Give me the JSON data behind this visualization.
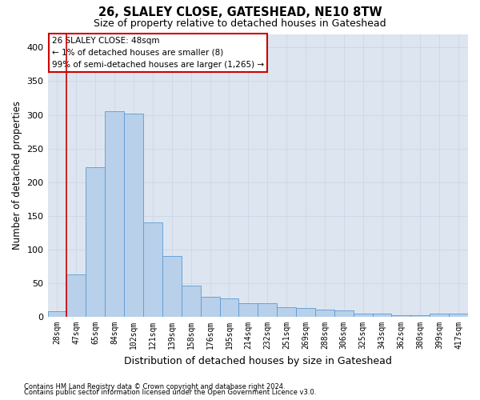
{
  "title1": "26, SLALEY CLOSE, GATESHEAD, NE10 8TW",
  "title2": "Size of property relative to detached houses in Gateshead",
  "xlabel": "Distribution of detached houses by size in Gateshead",
  "ylabel": "Number of detached properties",
  "bar_values": [
    8,
    63,
    222,
    305,
    302,
    140,
    90,
    46,
    30,
    27,
    20,
    20,
    14,
    13,
    11,
    10,
    5,
    5,
    3,
    3,
    5,
    5
  ],
  "bar_labels": [
    "28sqm",
    "47sqm",
    "65sqm",
    "84sqm",
    "102sqm",
    "121sqm",
    "139sqm",
    "158sqm",
    "176sqm",
    "195sqm",
    "214sqm",
    "232sqm",
    "251sqm",
    "269sqm",
    "288sqm",
    "306sqm",
    "325sqm",
    "343sqm",
    "362sqm",
    "380sqm",
    "399sqm",
    "417sqm"
  ],
  "bar_color": "#b8d0ea",
  "bar_edge_color": "#5b9bd5",
  "annotation_line1": "26 SLALEY CLOSE: 48sqm",
  "annotation_line2": "← 1% of detached houses are smaller (8)",
  "annotation_line3": "99% of semi-detached houses are larger (1,265) →",
  "annotation_box_color": "#ffffff",
  "annotation_box_edge_color": "#cc0000",
  "redline_x": 0.5,
  "ylim": [
    0,
    420
  ],
  "yticks": [
    0,
    50,
    100,
    150,
    200,
    250,
    300,
    350,
    400
  ],
  "grid_color": "#d0d8e8",
  "bg_color": "#dde6f0",
  "footer1": "Contains HM Land Registry data © Crown copyright and database right 2024.",
  "footer2": "Contains public sector information licensed under the Open Government Licence v3.0."
}
